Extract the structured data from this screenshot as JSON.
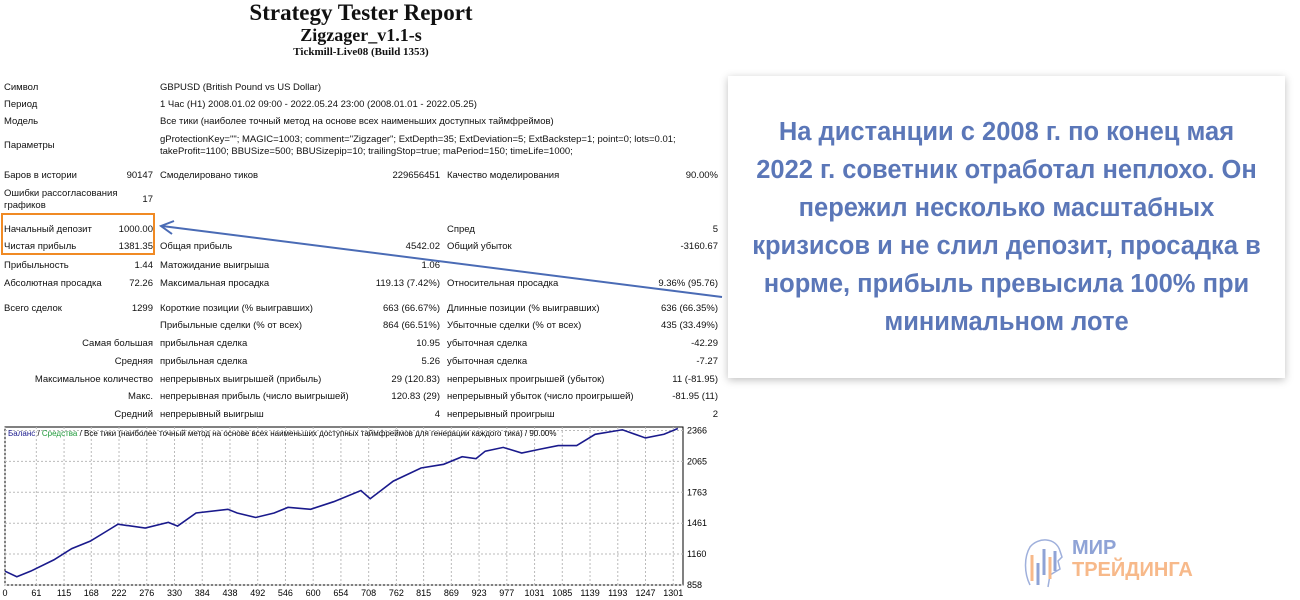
{
  "header": {
    "title": "Strategy Tester Report",
    "expert": "Zigzager_v1.1-s",
    "server": "Tickmill-Live08 (Build 1353)"
  },
  "info": [
    {
      "label": "Символ",
      "value": "GBPUSD (British Pound vs US Dollar)"
    },
    {
      "label": "Период",
      "value": "1 Час (H1) 2008.01.02 09:00 - 2022.05.24 23:00 (2008.01.01 - 2022.05.25)"
    },
    {
      "label": "Модель",
      "value": "Все тики (наиболее точный метод на основе всех наименьших доступных таймфреймов)"
    },
    {
      "label": "Параметры",
      "value": "gProtectionKey=\"\"; MAGIC=1003; comment=\"Zigzager\"; ExtDepth=35; ExtDeviation=5; ExtBackstep=1; point=0; lots=0.01;",
      "value2": "takeProfit=1100; BBUSize=500; BBUSizepip=10; trailingStop=true; maPeriod=150; timeLife=1000;"
    }
  ],
  "stats": [
    [
      "Баров в истории",
      "90147",
      "Смоделировано тиков",
      "229656451",
      "Качество моделирования",
      "90.00%"
    ],
    [
      "Ошибки рассогласования графиков",
      "17",
      "",
      "",
      "",
      ""
    ],
    [
      "Начальный депозит",
      "1000.00",
      "",
      "",
      "Спред",
      "5"
    ],
    [
      "Чистая прибыль",
      "1381.35",
      "Общая прибыль",
      "4542.02",
      "Общий убыток",
      "-3160.67"
    ],
    [
      "Прибыльность",
      "1.44",
      "Матожидание выигрыша",
      "1.06",
      "",
      ""
    ],
    [
      "Абсолютная просадка",
      "72.26",
      "Максимальная просадка",
      "119.13 (7.42%)",
      "Относительная просадка",
      "9.36% (95.76)"
    ],
    [
      "Всего сделок",
      "1299",
      "Короткие позиции (% выигравших)",
      "663 (66.67%)",
      "Длинные позиции (% выигравших)",
      "636 (66.35%)"
    ],
    [
      "",
      "",
      "Прибыльные сделки (% от всех)",
      "864 (66.51%)",
      "Убыточные сделки (% от всех)",
      "435 (33.49%)"
    ],
    [
      "Самая большая",
      "",
      "прибыльная сделка",
      "10.95",
      "убыточная сделка",
      "-42.29"
    ],
    [
      "Средняя",
      "",
      "прибыльная сделка",
      "5.26",
      "убыточная сделка",
      "-7.27"
    ],
    [
      "Максимальное количество",
      "",
      "непрерывных выигрышей (прибыль)",
      "29 (120.83)",
      "непрерывных проигрышей (убыток)",
      "11 (-81.95)"
    ],
    [
      "Макс.",
      "",
      "непрерывная прибыль (число выигрышей)",
      "120.83 (29)",
      "непрерывный убыток (число проигрышей)",
      "-81.95 (11)"
    ],
    [
      "Средний",
      "",
      "непрерывный выигрыш",
      "4",
      "непрерывный проигрыш",
      "2"
    ]
  ],
  "callout": {
    "text": "На дистанции с 2008 г. по конец мая 2022 г. советник отработал неплохо. Он пережил несколько масштабных кризисов и не слил депозит, просадка в норме, прибыль превысила 100% при минимальном лоте"
  },
  "colors": {
    "callout_text": "#5b77b8",
    "highlight_box": "#f08a24",
    "arrow": "#4a6bb5",
    "balance_line": "#1a1a8c",
    "equity_label": "#1f9a3a"
  },
  "chart_data": {
    "type": "line",
    "legend": {
      "balance": "Баланс",
      "sep1": " / ",
      "equity": "Средства",
      "rest": " / Все тики (наиболее точный метод на основе всех наименьших доступных таймфреймов для генерации каждого тика) / 90.00%"
    },
    "x_ticks": [
      0,
      61,
      115,
      168,
      222,
      276,
      330,
      384,
      438,
      492,
      546,
      600,
      654,
      708,
      762,
      815,
      869,
      923,
      977,
      1031,
      1085,
      1139,
      1193,
      1247,
      1301
    ],
    "y_ticks": [
      858,
      1160,
      1461,
      1763,
      2065,
      2366
    ],
    "xlim": [
      0,
      1320
    ],
    "ylim": [
      858,
      2400
    ],
    "grid": true,
    "series": [
      {
        "x": [
          0,
          23,
          50,
          95,
          130,
          166,
          202,
          220,
          273,
          318,
          336,
          372,
          434,
          452,
          488,
          524,
          551,
          595,
          640,
          693,
          711,
          756,
          810,
          854,
          890,
          917,
          935,
          970,
          1006,
          1041,
          1077,
          1113,
          1149,
          1202,
          1247,
          1283,
          1310
        ],
        "y": [
          993,
          939,
          993,
          1103,
          1213,
          1286,
          1396,
          1451,
          1414,
          1469,
          1433,
          1561,
          1597,
          1561,
          1517,
          1561,
          1616,
          1597,
          1671,
          1780,
          1700,
          1872,
          2000,
          2036,
          2110,
          2091,
          2164,
          2201,
          2146,
          2183,
          2219,
          2219,
          2329,
          2373,
          2293,
          2329,
          2385
        ]
      }
    ]
  },
  "logo": {
    "line1": "МИР",
    "line2": "ТРЕЙДИНГА"
  }
}
